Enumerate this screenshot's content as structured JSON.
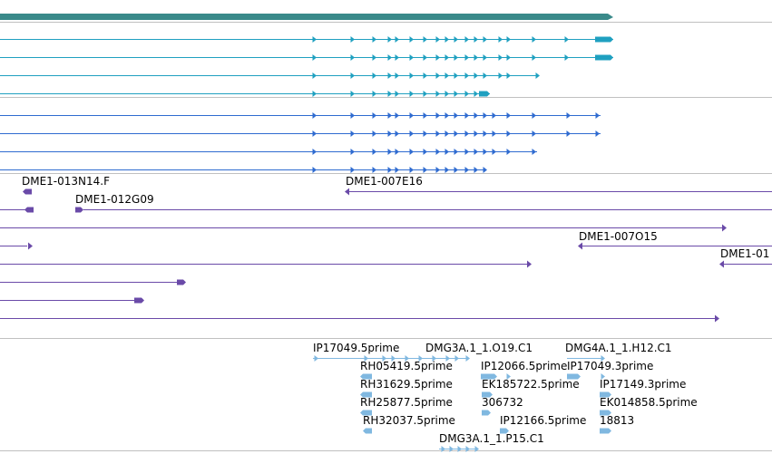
{
  "colors": {
    "gene": "#3a8a8a",
    "transcript": "#1fa0c0",
    "protein": "#2f6bd0",
    "clone": "#6a4aa8",
    "est": "#80b8e0",
    "divider": "#c0c0c0"
  },
  "gene_track": {
    "name": "gene-bar"
  },
  "transcripts": [
    {
      "name": "transcript-1"
    },
    {
      "name": "transcript-2"
    },
    {
      "name": "transcript-3"
    },
    {
      "name": "transcript-4"
    }
  ],
  "proteins": [
    {
      "name": "protein-1"
    },
    {
      "name": "protein-2"
    },
    {
      "name": "protein-3"
    },
    {
      "name": "protein-4"
    }
  ],
  "clones": [
    {
      "label": "DME1-013N14.F",
      "strand": "-"
    },
    {
      "label": "DME1-007E16",
      "strand": "-"
    },
    {
      "label": "DME1-012G09",
      "strand": "+"
    },
    {
      "label": "",
      "strand": "+"
    },
    {
      "label": "",
      "strand": "+"
    },
    {
      "label": "DME1-007O15",
      "strand": "-"
    },
    {
      "label": "DME1-01",
      "strand": "-"
    },
    {
      "label": "",
      "strand": "+"
    },
    {
      "label": "",
      "strand": "+"
    },
    {
      "label": "",
      "strand": "+"
    },
    {
      "label": "",
      "strand": "-"
    }
  ],
  "ests": [
    {
      "label": "IP17049.5prime"
    },
    {
      "label": "DMG3A.1_1.O19.C1"
    },
    {
      "label": "DMG4A.1_1.H12.C1"
    },
    {
      "label": "RH05419.5prime"
    },
    {
      "label": "IP12066.5prime"
    },
    {
      "label": "IP17049.3prime"
    },
    {
      "label": "RH31629.5prime"
    },
    {
      "label": "EK185722.5prime"
    },
    {
      "label": "IP17149.3prime"
    },
    {
      "label": "RH25877.5prime"
    },
    {
      "label": "306732"
    },
    {
      "label": "EK014858.5prime"
    },
    {
      "label": "RH32037.5prime"
    },
    {
      "label": "IP12166.5prime"
    },
    {
      "label": "18813"
    },
    {
      "label": "DMG3A.1_1.P15.C1"
    }
  ]
}
